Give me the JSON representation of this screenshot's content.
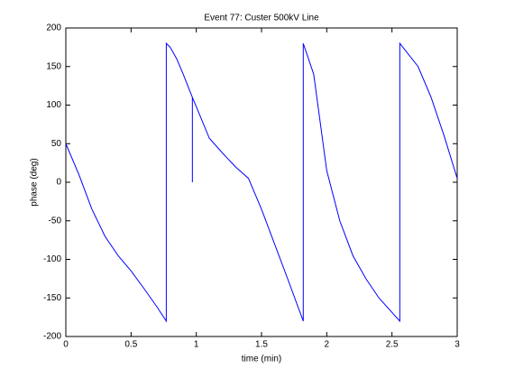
{
  "chart_data": {
    "type": "line",
    "title": "Event 77: Custer 500kV Line",
    "xlabel": "time (min)",
    "ylabel": "phase (deg)",
    "x": [
      0,
      0.1,
      0.2,
      0.3,
      0.4,
      0.5,
      0.6,
      0.7,
      0.77,
      0.77,
      0.8,
      0.85,
      0.9,
      0.97,
      0.97,
      0.97,
      1.0,
      1.1,
      1.2,
      1.3,
      1.4,
      1.45,
      1.5,
      1.6,
      1.7,
      1.82,
      1.82,
      1.9,
      2.0,
      2.1,
      2.2,
      2.3,
      2.4,
      2.56,
      2.56,
      2.7,
      2.8,
      2.9,
      3.0
    ],
    "series": [
      {
        "name": "phase",
        "color": "#0000ff",
        "values": [
          50,
          10,
          -35,
          -70,
          -95,
          -115,
          -138,
          -162,
          -180,
          180,
          175,
          160,
          140,
          110,
          0,
          110,
          98,
          57,
          38,
          20,
          5,
          -15,
          -35,
          -80,
          -125,
          -180,
          180,
          140,
          15,
          -50,
          -95,
          -125,
          -150,
          -180,
          180,
          150,
          110,
          60,
          5
        ]
      }
    ],
    "xlim": [
      0,
      3
    ],
    "xticks": [
      0,
      0.5,
      1,
      1.5,
      2,
      2.5,
      3
    ],
    "ylim": [
      -200,
      200
    ],
    "yticks": [
      -200,
      -150,
      -100,
      -50,
      0,
      50,
      100,
      150,
      200
    ],
    "grid": false
  }
}
